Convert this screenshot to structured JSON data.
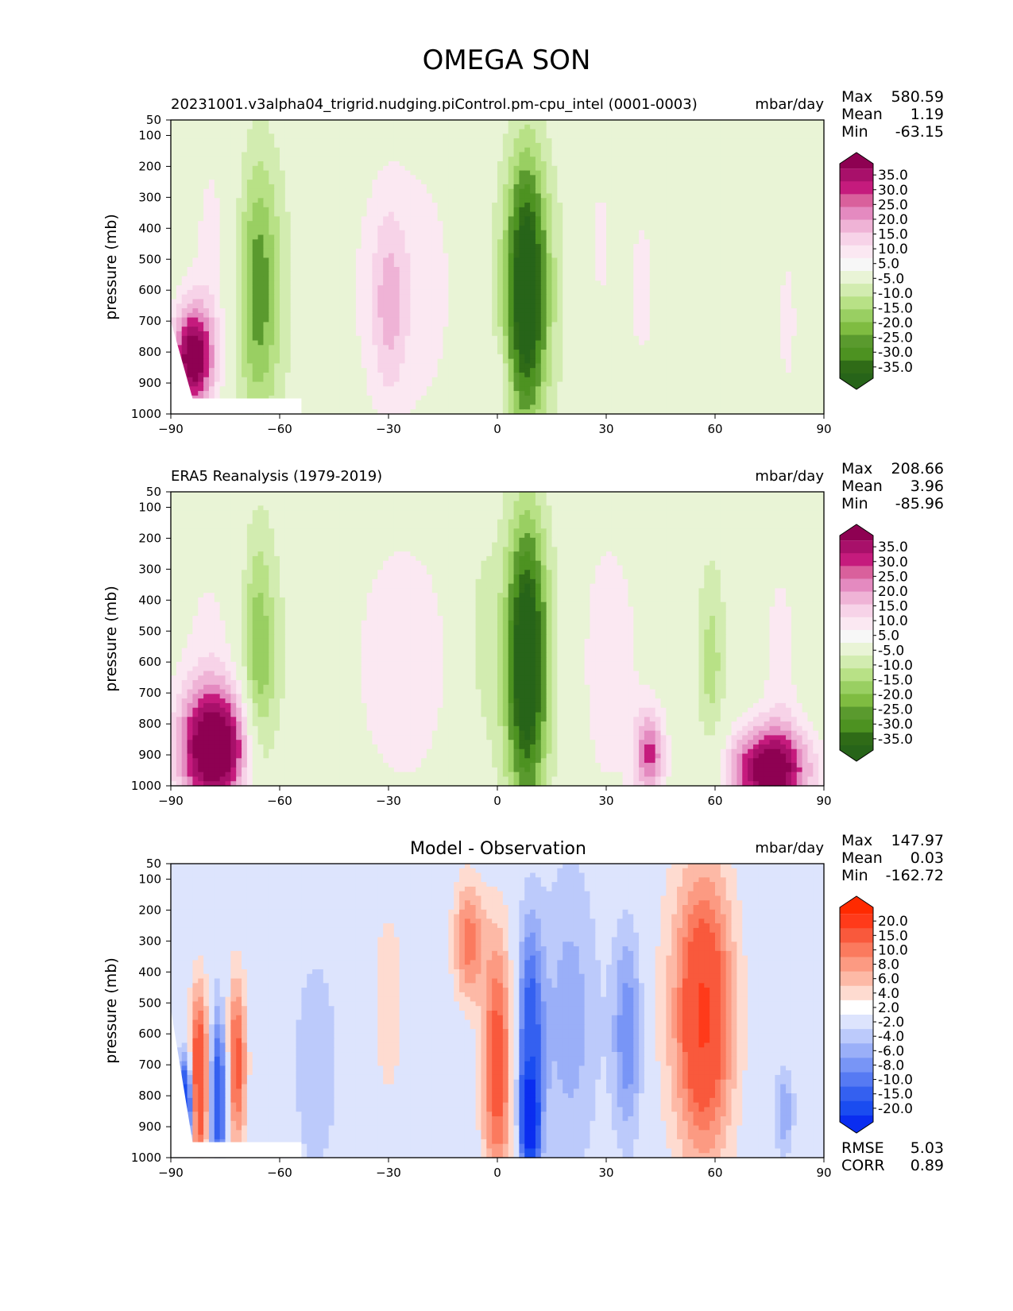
{
  "figure": {
    "title": "OMEGA SON"
  },
  "chart_data": [
    {
      "type": "heatmap",
      "title": "20231001.v3alpha04_trigrid.nudging.piControl.pm-cpu_intel (0001-0003)",
      "units": "mbar/day",
      "ylabel": "pressure (mb)",
      "xlim": [
        -90,
        90
      ],
      "ylim": [
        1000,
        50
      ],
      "xticks": [
        "−90",
        "−60",
        "−30",
        "0",
        "30",
        "60",
        "90"
      ],
      "yticks": [
        "50",
        "100",
        "200",
        "300",
        "400",
        "500",
        "600",
        "700",
        "800",
        "900",
        "1000"
      ],
      "stats": {
        "max_label": "Max",
        "max": "580.59",
        "mean_label": "Mean",
        "mean": "1.19",
        "min_label": "Min",
        "min": "-63.15"
      },
      "colorbar": {
        "labels": [
          "35.0",
          "30.0",
          "25.0",
          "20.0",
          "15.0",
          "10.0",
          "5.0",
          "-5.0",
          "-10.0",
          "-15.0",
          "-20.0",
          "-25.0",
          "-30.0",
          "-35.0"
        ],
        "colors": [
          "#8e0152",
          "#a8106a",
          "#c51b7d",
          "#d9609c",
          "#e48ac0",
          "#efb3d6",
          "#f7d3e8",
          "#fbe8f2",
          "#f7f7f7",
          "#e9f4d6",
          "#d2ecb0",
          "#b8e186",
          "#99cf62",
          "#7fbc41",
          "#5a9a2e",
          "#4d9221",
          "#2f6b17",
          "#276419"
        ]
      },
      "blobs": [
        {
          "x": 8,
          "p": 600,
          "sx": 3.5,
          "sp": 280,
          "v": -36
        },
        {
          "x": 8,
          "p": 600,
          "sx": 8,
          "sp": 360,
          "v": -12
        },
        {
          "x": -66,
          "p": 600,
          "sx": 4,
          "sp": 300,
          "v": -18
        },
        {
          "x": -64,
          "p": 600,
          "sx": 9,
          "sp": 380,
          "v": -6
        },
        {
          "x": -26,
          "p": 600,
          "sx": 12,
          "sp": 350,
          "v": 9
        },
        {
          "x": -30,
          "p": 650,
          "sx": 3,
          "sp": 200,
          "v": 10
        },
        {
          "x": -84,
          "p": 820,
          "sx": 4,
          "sp": 120,
          "v": 40
        },
        {
          "x": -78,
          "p": 500,
          "sx": 5,
          "sp": 350,
          "v": 8
        },
        {
          "x": 40,
          "p": 600,
          "sx": 4,
          "sp": 300,
          "v": 6
        },
        {
          "x": 28,
          "p": 450,
          "sx": 4,
          "sp": 300,
          "v": 6
        },
        {
          "x": 80,
          "p": 700,
          "sx": 3,
          "sp": 280,
          "v": 6
        },
        {
          "x": 0,
          "p": 900,
          "sx": 2,
          "sp": 80,
          "v": 10
        }
      ],
      "mask": [
        [
          -90,
          700
        ],
        [
          -84,
          950
        ],
        [
          -54,
          950
        ],
        [
          -54,
          1000
        ],
        [
          -90,
          1000
        ]
      ]
    },
    {
      "type": "heatmap",
      "title": "ERA5 Reanalysis (1979-2019)",
      "units": "mbar/day",
      "ylabel": "pressure (mb)",
      "xlim": [
        -90,
        90
      ],
      "ylim": [
        1000,
        50
      ],
      "xticks": [
        "−90",
        "−60",
        "−30",
        "0",
        "30",
        "60",
        "90"
      ],
      "yticks": [
        "50",
        "100",
        "200",
        "300",
        "400",
        "500",
        "600",
        "700",
        "800",
        "900",
        "1000"
      ],
      "stats": {
        "max_label": "Max",
        "max": "208.66",
        "mean_label": "Mean",
        "mean": "3.96",
        "min_label": "Min",
        "min": "-85.96"
      },
      "colorbar": {
        "labels": [
          "35.0",
          "30.0",
          "25.0",
          "20.0",
          "15.0",
          "10.0",
          "5.0",
          "-5.0",
          "-10.0",
          "-15.0",
          "-20.0",
          "-25.0",
          "-30.0",
          "-35.0"
        ],
        "colors": [
          "#8e0152",
          "#a8106a",
          "#c51b7d",
          "#d9609c",
          "#e48ac0",
          "#efb3d6",
          "#f7d3e8",
          "#fbe8f2",
          "#f7f7f7",
          "#e9f4d6",
          "#d2ecb0",
          "#b8e186",
          "#99cf62",
          "#7fbc41",
          "#5a9a2e",
          "#4d9221",
          "#2f6b17",
          "#276419"
        ]
      },
      "blobs": [
        {
          "x": 8,
          "p": 600,
          "sx": 3.5,
          "sp": 300,
          "v": -36
        },
        {
          "x": 8,
          "p": 600,
          "sx": 8,
          "sp": 380,
          "v": -12
        },
        {
          "x": -66,
          "p": 600,
          "sx": 3,
          "sp": 280,
          "v": -16
        },
        {
          "x": -64,
          "p": 600,
          "sx": 8,
          "sp": 380,
          "v": -6
        },
        {
          "x": -5,
          "p": 500,
          "sx": 3,
          "sp": 250,
          "v": -5
        },
        {
          "x": -26,
          "p": 600,
          "sx": 12,
          "sp": 370,
          "v": 8
        },
        {
          "x": 30,
          "p": 600,
          "sx": 8,
          "sp": 380,
          "v": 8
        },
        {
          "x": -78,
          "p": 880,
          "sx": 7,
          "sp": 140,
          "v": 45
        },
        {
          "x": -78,
          "p": 550,
          "sx": 7,
          "sp": 300,
          "v": 7
        },
        {
          "x": 59,
          "p": 600,
          "sx": 3,
          "sp": 250,
          "v": -12
        },
        {
          "x": 75,
          "p": 950,
          "sx": 8,
          "sp": 100,
          "v": 40
        },
        {
          "x": 78,
          "p": 600,
          "sx": 4,
          "sp": 300,
          "v": 7
        },
        {
          "x": 42,
          "p": 900,
          "sx": 3,
          "sp": 100,
          "v": 25
        }
      ],
      "mask": []
    },
    {
      "type": "heatmap",
      "title": "Model - Observation",
      "units": "mbar/day",
      "ylabel": "pressure (mb)",
      "xlim": [
        -90,
        90
      ],
      "ylim": [
        1000,
        50
      ],
      "xticks": [
        "−90",
        "−60",
        "−30",
        "0",
        "30",
        "60",
        "90"
      ],
      "yticks": [
        "50",
        "100",
        "200",
        "300",
        "400",
        "500",
        "600",
        "700",
        "800",
        "900",
        "1000"
      ],
      "stats": {
        "max_label": "Max",
        "max": "147.97",
        "mean_label": "Mean",
        "mean": "0.03",
        "min_label": "Min",
        "min": "-162.72",
        "rmse_label": "RMSE",
        "rmse": "5.03",
        "corr_label": "CORR",
        "corr": "0.89"
      },
      "colorbar": {
        "labels": [
          "20.0",
          "15.0",
          "10.0",
          "8.0",
          "6.0",
          "4.0",
          "2.0",
          "-2.0",
          "-4.0",
          "-6.0",
          "-8.0",
          "-10.0",
          "-15.0",
          "-20.0"
        ],
        "colors": [
          "#ff2a00",
          "#ff3a1a",
          "#f9593c",
          "#fb7a5e",
          "#fc9a82",
          "#fdb9a6",
          "#fedbd0",
          "#ffffff",
          "#dde4fd",
          "#bccafb",
          "#9aaff8",
          "#7895f6",
          "#567af3",
          "#3460f0",
          "#1a4cf0",
          "#0a2df0"
        ]
      },
      "blobs": [
        {
          "x": 0,
          "p": 700,
          "sx": 3,
          "sp": 300,
          "v": 12
        },
        {
          "x": 9,
          "p": 650,
          "sx": 2.5,
          "sp": 280,
          "v": -13
        },
        {
          "x": 9,
          "p": 880,
          "sx": 1.5,
          "sp": 90,
          "v": -25
        },
        {
          "x": -8,
          "p": 300,
          "sx": 3,
          "sp": 140,
          "v": 9
        },
        {
          "x": 20,
          "p": 550,
          "sx": 6,
          "sp": 380,
          "v": -5
        },
        {
          "x": 36,
          "p": 600,
          "sx": 3,
          "sp": 250,
          "v": -8
        },
        {
          "x": 57,
          "p": 550,
          "sx": 5,
          "sp": 300,
          "v": 12
        },
        {
          "x": 55,
          "p": 500,
          "sx": 9,
          "sp": 400,
          "v": 4
        },
        {
          "x": -50,
          "p": 700,
          "sx": 6,
          "sp": 350,
          "v": -3
        },
        {
          "x": -77,
          "p": 800,
          "sx": 2,
          "sp": 200,
          "v": -14
        },
        {
          "x": -82,
          "p": 750,
          "sx": 2,
          "sp": 200,
          "v": 16
        },
        {
          "x": -72,
          "p": 700,
          "sx": 2,
          "sp": 200,
          "v": 12
        },
        {
          "x": -86,
          "p": 820,
          "sx": 1.5,
          "sp": 100,
          "v": -20
        },
        {
          "x": -30,
          "p": 500,
          "sx": 4,
          "sp": 300,
          "v": 3
        },
        {
          "x": 79,
          "p": 850,
          "sx": 2,
          "sp": 100,
          "v": -6
        }
      ],
      "mask": [
        [
          -90,
          520
        ],
        [
          -84,
          950
        ],
        [
          -54,
          950
        ],
        [
          -54,
          1000
        ],
        [
          -90,
          1000
        ]
      ]
    }
  ]
}
